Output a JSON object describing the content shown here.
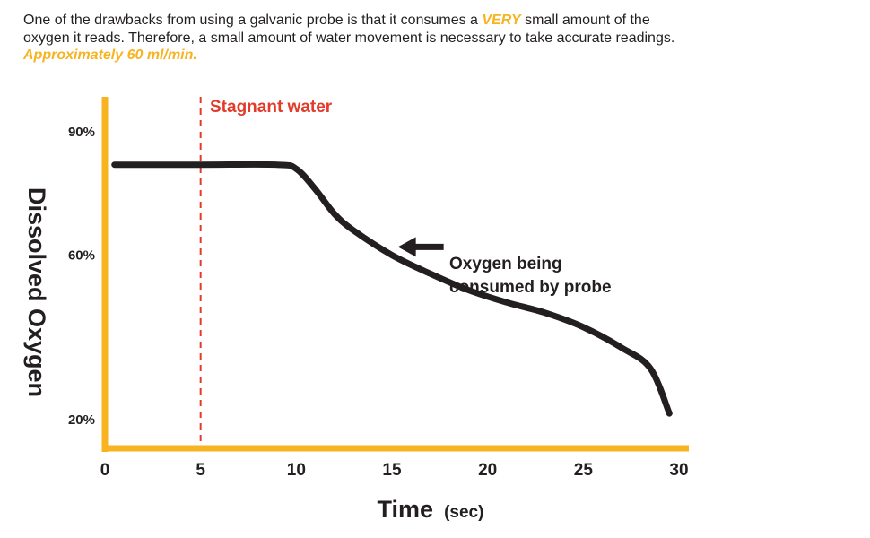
{
  "intro": {
    "part1": "One of the drawbacks from using a galvanic probe is that it consumes a ",
    "emph": "VERY",
    "part2": " small amount of the oxygen it reads. Therefore, a small amount of water movement is necessary to take accurate readings. ",
    "rate": "Approximately 60 ml/min."
  },
  "colors": {
    "axis": "#f7b320",
    "curve": "#231f20",
    "marker": "#e23b2a",
    "highlight": "#f7b320"
  },
  "chart_data": {
    "type": "line",
    "title": "",
    "xlabel": "Time",
    "xlabel_unit": "(sec)",
    "ylabel": "Dissolved Oxygen",
    "xlim": [
      0,
      30
    ],
    "ylim": [
      20,
      90
    ],
    "x_ticks": [
      0,
      5,
      10,
      15,
      20,
      25,
      30
    ],
    "x_tick_labels": [
      "0",
      "5",
      "10",
      "15",
      "20",
      "25",
      "30"
    ],
    "y_ticks": [
      20,
      60,
      90
    ],
    "y_tick_labels": [
      "20%",
      "60%",
      "90%"
    ],
    "grid": false,
    "series": [
      {
        "x": [
          0.5,
          5,
          9,
          10,
          11,
          12,
          13,
          15,
          17,
          19,
          21,
          23,
          25,
          27,
          28.5,
          29.5
        ],
        "y": [
          82,
          82,
          82,
          81,
          76,
          70,
          66,
          60,
          55.5,
          51.5,
          48.5,
          46,
          42.5,
          37.5,
          32.5,
          21.5
        ]
      }
    ],
    "annotations": {
      "stagnant": {
        "x": 5,
        "label": "Stagnant water"
      },
      "consumed": {
        "x": 15.5,
        "y": 62,
        "line1": "Oxygen being",
        "line2": "consumed by probe"
      }
    }
  }
}
